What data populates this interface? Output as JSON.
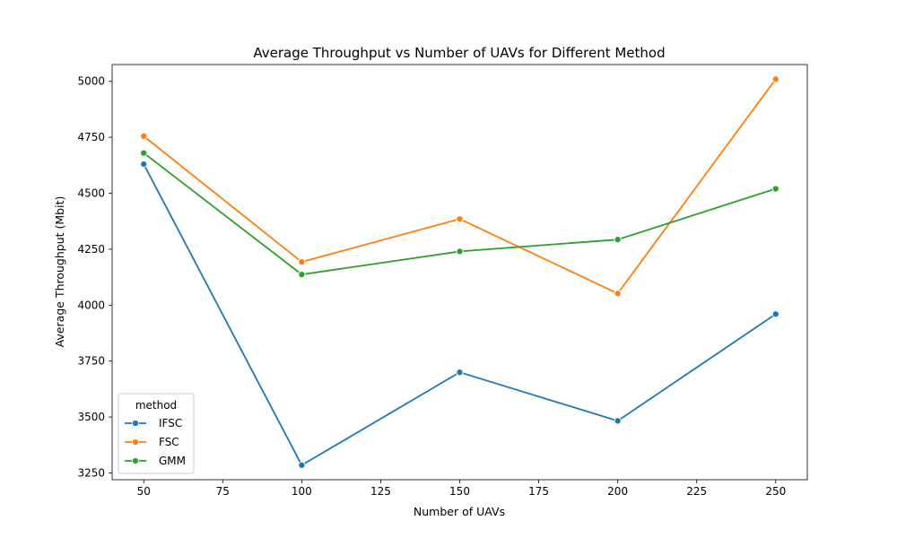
{
  "chart_data": {
    "type": "line",
    "title": "Average Throughput vs Number of UAVs for Different Method",
    "xlabel": "Number of UAVs",
    "ylabel": "Average Throughput (Mbit)",
    "x": [
      50,
      100,
      150,
      200,
      250
    ],
    "xlim": [
      40,
      260
    ],
    "ylim": [
      3220,
      5075
    ],
    "xticks": [
      50,
      75,
      100,
      125,
      150,
      175,
      200,
      225,
      250
    ],
    "yticks": [
      3250,
      3500,
      3750,
      4000,
      4250,
      4500,
      4750,
      5000
    ],
    "grid": false,
    "legend": {
      "title": "method",
      "placement": "lower-left"
    },
    "series": [
      {
        "name": "IFSC",
        "color": "#1f77b4",
        "values": [
          4630,
          3285,
          3700,
          3483,
          3960
        ]
      },
      {
        "name": "FSC",
        "color": "#ff7f0e",
        "values": [
          4755,
          4193,
          4385,
          4052,
          5010
        ]
      },
      {
        "name": "GMM",
        "color": "#2ca02c",
        "values": [
          4680,
          4137,
          4240,
          4293,
          4520
        ]
      }
    ]
  }
}
